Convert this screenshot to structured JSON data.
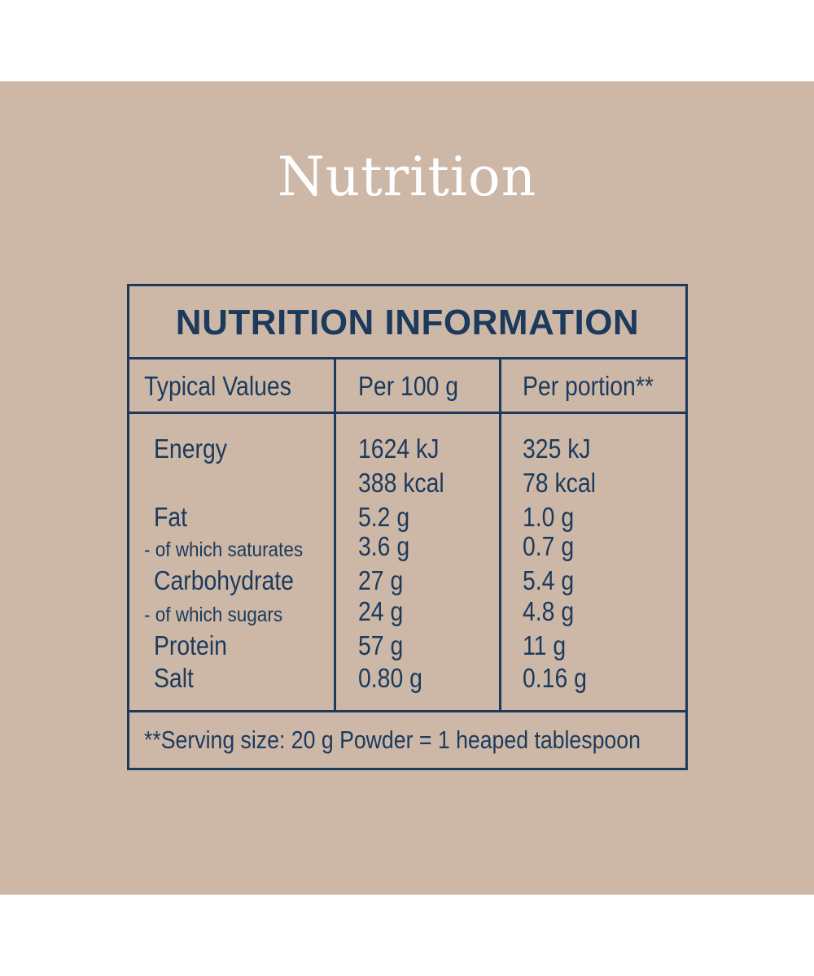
{
  "page": {
    "heading": "Nutrition",
    "background_color": "#cdb8a8",
    "ink_color": "#1b3a5c"
  },
  "table": {
    "title": "NUTRITION INFORMATION",
    "headers": [
      "Typical Values",
      "Per 100 g",
      "Per portion**"
    ],
    "rows": [
      {
        "label": "Energy",
        "per100": "1624 kJ",
        "portion": "325 kJ"
      },
      {
        "label": "",
        "per100": "388 kcal",
        "portion": "78 kcal"
      },
      {
        "label": "Fat",
        "per100": "5.2 g",
        "portion": "1.0 g"
      },
      {
        "label": "- of which saturates",
        "per100": "3.6 g",
        "portion": "0.7 g"
      },
      {
        "label": "Carbohydrate",
        "per100": "27 g",
        "portion": "5.4 g"
      },
      {
        "label": "- of which sugars",
        "per100": "24 g",
        "portion": "4.8 g"
      },
      {
        "label": "Protein",
        "per100": "57 g",
        "portion": "11 g"
      },
      {
        "label": "Salt",
        "per100": "0.80 g",
        "portion": "0.16 g"
      }
    ],
    "footnote": "**Serving size: 20 g Powder = 1 heaped tablespoon"
  }
}
